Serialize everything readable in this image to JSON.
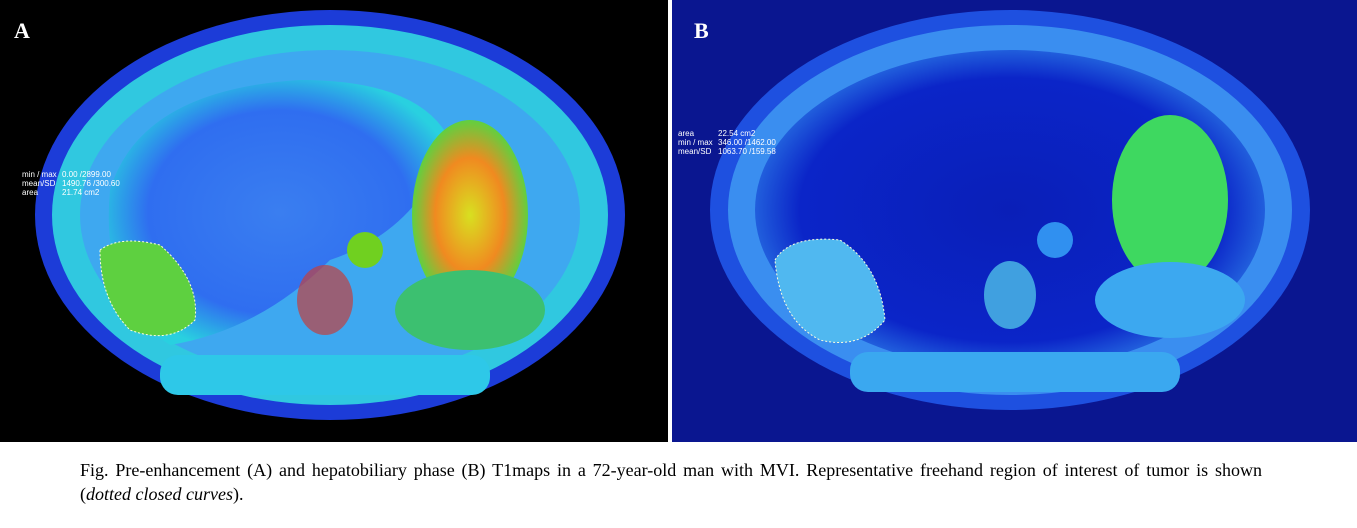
{
  "figure": {
    "panels": [
      {
        "label": "A",
        "overlay": [
          {
            "key": "min / max",
            "value": "0.00 /2899.00"
          },
          {
            "key": "mean/SD",
            "value": "1490.76 /300.60"
          },
          {
            "key": "area",
            "value": "21.74 cm2"
          }
        ]
      },
      {
        "label": "B",
        "overlay": [
          {
            "key": "area",
            "value": "22.54 cm2"
          },
          {
            "key": "min / max",
            "value": "346.00 /1462.00"
          },
          {
            "key": "mean/SD",
            "value": "1063.70 /159.58"
          }
        ]
      }
    ],
    "caption": {
      "text": "Fig. Pre-enhancement (A) and hepatobiliary phase (B) T1maps in a 72-year-old man with MVI. Representative freehand region of interest of tumor is shown (",
      "italic": "dotted closed curves",
      "end": ")."
    }
  }
}
